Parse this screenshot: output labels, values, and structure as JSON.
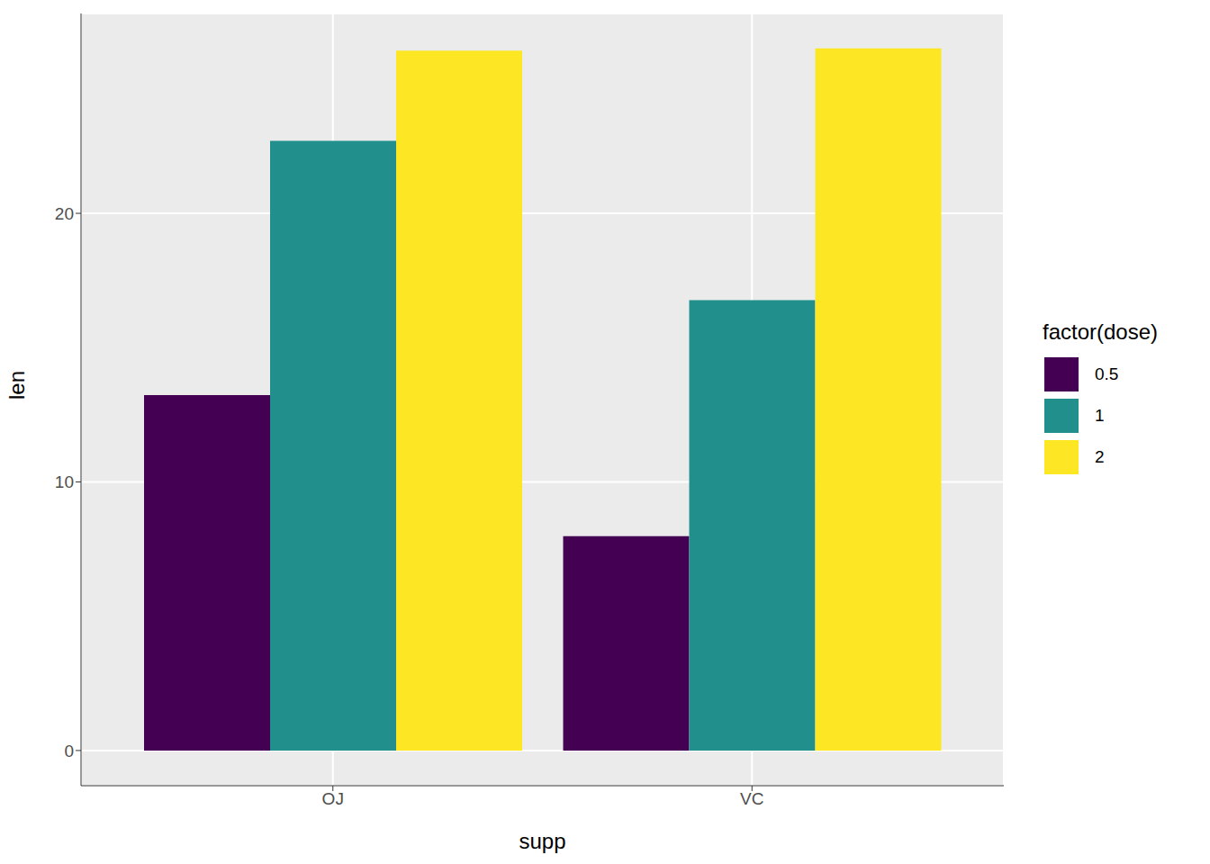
{
  "chart_data": {
    "type": "bar",
    "x_label": "supp",
    "y_label": "len",
    "legend_title": "factor(dose)",
    "legend": "right",
    "grid": true,
    "categories": [
      "OJ",
      "VC"
    ],
    "series": [
      {
        "name": "0.5",
        "color": "#440154",
        "values": [
          13.23,
          7.98
        ]
      },
      {
        "name": "1",
        "color": "#21908C",
        "values": [
          22.7,
          16.77
        ]
      },
      {
        "name": "2",
        "color": "#FDE725",
        "values": [
          26.06,
          26.14
        ]
      }
    ],
    "ylim": [
      -1.31,
      27.44
    ],
    "yticks": [
      0,
      10,
      20
    ]
  }
}
